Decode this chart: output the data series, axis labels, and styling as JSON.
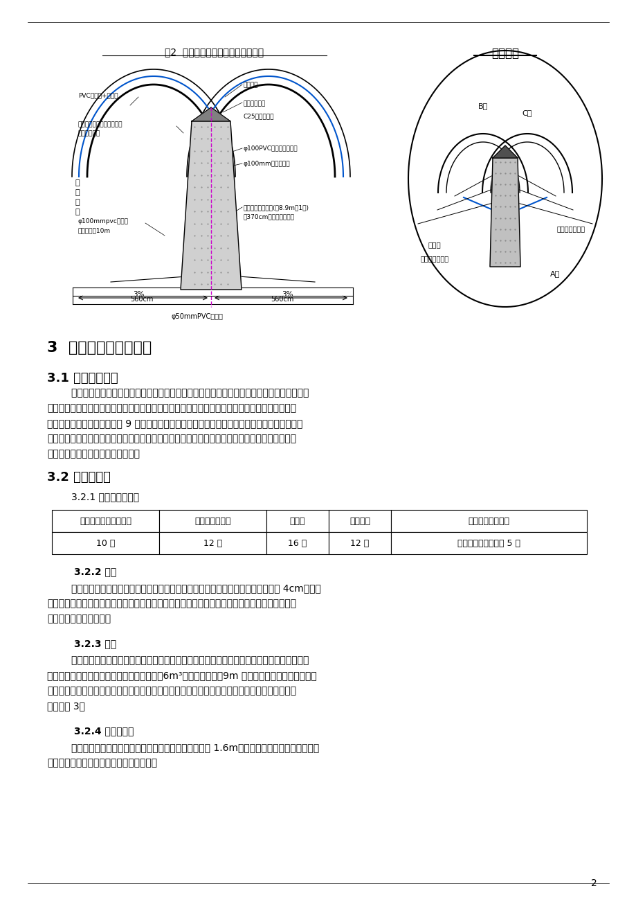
{
  "page_bg": "#ffffff",
  "title_fig2": "图2  隧道中隔墙衬砌防、排水系统图",
  "title_top": "顶部大样",
  "section3_title": "3  隧道中隔墙施工方案",
  "sec31_title": "3.1 施工顺序概述",
  "sec31_body": "        公路双连拱隧道，由于左右线多为二车道或三车道，跨度较大，往往采用三导洞法分部施工，\n该隧道施工也不例外，即先按常用的方法开挖中导洞，待中导洞不作开挖的运输通道后，施作中隔\n墙钢筋混凝土衬砌。中隔墙每 9 米左右设一道施工缝，并按同标号混凝土基底回填找平层施工（便\n于钢筋安装和确保文明施工）、基础施工、墙身施工三个工作面向洞口方向施作，施工过程中按设\n计文件设置沉降缝和其它预埋管线。",
  "sec32_title": "3.2 混凝土施工",
  "sec321_title": "        3.2.1 施工人员布置表",
  "table_headers": [
    "台车定位、加固、拆模",
    "中隔墙基础木工",
    "钢筋工",
    "混凝土工",
    "其他现场管服人员"
  ],
  "table_row1": [
    "10 人",
    "12 人",
    "16 人",
    "12 人",
    "技术、领工、电工等 5 人"
  ],
  "sec322_title": "        3.2.2 材料",
  "sec322_body": "        混凝土及防排水用的原材均按设计文件和业主要求的办理，其中粗骨料粒径不大于 4cm，防止\n堵管，混凝土外加剂采用复合型抗裂防水混凝土膨胀剂，提高结构自防水能力，并降低混凝土水化\n热，减少混凝土的开裂。",
  "sec323_title": "        3.2.3 机具",
  "sec323_body": "        为确保施工质量，提高施工效率，采用整体模板台车、泵送混凝土工法。该工法重要的施工机\n械为确保生产能力的拌和站一座，泵机一台、6m³砼运输车二辆，9m 长整体台车一组，根据实际需\n要配备备用机具，为避免停电带来的影响，已配备能满足砼正常施工的发电机一台，整体钢模台车\n设计见图 3。",
  "sec324_title": "        3.2.4 混凝土浇筑",
  "sec324_body": "        通过检查窗向模内浇筑混凝土和捣振，由于墙身厚度为 1.6m，从单侧浇筑可满足要求，到了\n顶部窗口以上则从台车顶向内浇筑和捣振。",
  "page_num": "2"
}
